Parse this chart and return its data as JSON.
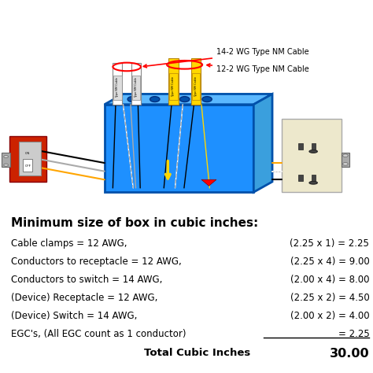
{
  "title": "Minimum size of box in cubic inches:",
  "rows": [
    {
      "left": "Cable clamps = 12 AWG,",
      "right": "(2.25 x 1) = 2.25"
    },
    {
      "left": "Conductors to receptacle = 12 AWG,",
      "right": "(2.25 x 4) = 9.00"
    },
    {
      "left": "Conductors to switch = 14 AWG,",
      "right": "(2.00 x 4) = 8.00"
    },
    {
      "left": "(Device) Receptacle = 12 AWG,",
      "right": "(2.25 x 2) = 4.50"
    },
    {
      "left": "(Device) Switch = 14 AWG,",
      "right": "(2.00 x 2) = 4.00"
    },
    {
      "left": "EGC's, (All EGC count as 1 conductor)",
      "right": "= 2.25"
    }
  ],
  "total_label": "Total Cubic Inches",
  "total_value": "30.00",
  "label_14": "14-2 WG Type NM Cable",
  "label_12": "12-2 WG Type NM Cable",
  "bg_color": "#ffffff",
  "text_color": "#000000"
}
